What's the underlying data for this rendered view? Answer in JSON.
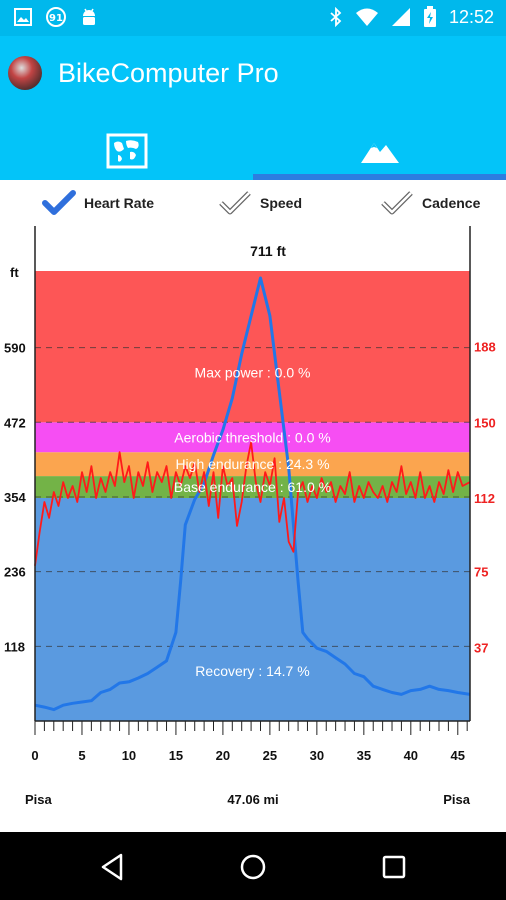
{
  "status_bar": {
    "time": "12:52",
    "notification_badge": "91",
    "icons": [
      "image-icon",
      "badge-91-icon",
      "android-icon",
      "bluetooth-icon",
      "wifi-icon",
      "signal-icon",
      "battery-icon"
    ]
  },
  "app_bar": {
    "title": "BikeComputer Pro",
    "tabs": [
      {
        "name": "map",
        "icon": "map-icon",
        "selected": false
      },
      {
        "name": "elevation",
        "icon": "mountain-icon",
        "selected": true
      }
    ],
    "colors": {
      "background": "#03c4f9",
      "indicator": "#2d7de0"
    }
  },
  "legend": [
    {
      "label": "Heart Rate",
      "checked": true
    },
    {
      "label": "Speed",
      "checked": false
    },
    {
      "label": "Cadence",
      "checked": false
    }
  ],
  "chart_data": {
    "type": "area",
    "peak_label": "711 ft",
    "left_axis_unit": "ft",
    "left_ticks": [
      "590",
      "472",
      "354",
      "236",
      "118"
    ],
    "right_ticks": [
      "188",
      "150",
      "112",
      "75",
      "37"
    ],
    "x_ticks": [
      "0",
      "5",
      "10",
      "15",
      "20",
      "25",
      "30",
      "35",
      "40",
      "45"
    ],
    "xlim": [
      0,
      46.3
    ],
    "elevation_ylim": [
      0,
      711
    ],
    "hr_ylim": [
      0,
      226
    ],
    "start_label": "Pisa",
    "distance_label": "47.06 mi",
    "end_label": "Pisa",
    "zones": [
      {
        "name": "Recovery",
        "label": "Recovery : 14.7 %",
        "from": 0,
        "to": 112,
        "color": "#5a9ae0"
      },
      {
        "name": "Base endurance",
        "label": "Base endurance : 61.0 %",
        "from": 112,
        "to": 123,
        "color": "#73b347"
      },
      {
        "name": "High endurance",
        "label": "High endurance : 24.3 %",
        "from": 123,
        "to": 135,
        "color": "#fba54f"
      },
      {
        "name": "Aerobic threshold",
        "label": "Aerobic threshold : 0.0 %",
        "from": 135,
        "to": 150,
        "color": "#f64ef3"
      },
      {
        "name": "Max power",
        "label": "Max power : 0.0 %",
        "from": 150,
        "to": 226,
        "color": "#fd5656"
      }
    ],
    "elevation_series": {
      "name": "Elevation",
      "color": "#2277e8",
      "points": [
        [
          0,
          25
        ],
        [
          1,
          22
        ],
        [
          2,
          18
        ],
        [
          3,
          25
        ],
        [
          4,
          28
        ],
        [
          5,
          30
        ],
        [
          6,
          32
        ],
        [
          7,
          45
        ],
        [
          8,
          50
        ],
        [
          9,
          60
        ],
        [
          10,
          62
        ],
        [
          11,
          68
        ],
        [
          12,
          75
        ],
        [
          13,
          85
        ],
        [
          14,
          95
        ],
        [
          15,
          140
        ],
        [
          15.5,
          220
        ],
        [
          16,
          310
        ],
        [
          17,
          350
        ],
        [
          18,
          375
        ],
        [
          19,
          420
        ],
        [
          20,
          460
        ],
        [
          21,
          510
        ],
        [
          22,
          580
        ],
        [
          23,
          640
        ],
        [
          24,
          700
        ],
        [
          25,
          640
        ],
        [
          26,
          520
        ],
        [
          27,
          400
        ],
        [
          28,
          220
        ],
        [
          28.5,
          140
        ],
        [
          29,
          130
        ],
        [
          30,
          115
        ],
        [
          31,
          110
        ],
        [
          32,
          100
        ],
        [
          33,
          90
        ],
        [
          34,
          75
        ],
        [
          35,
          70
        ],
        [
          36,
          55
        ],
        [
          37,
          50
        ],
        [
          38,
          45
        ],
        [
          39,
          42
        ],
        [
          40,
          48
        ],
        [
          41,
          50
        ],
        [
          42,
          55
        ],
        [
          43,
          50
        ],
        [
          44,
          48
        ],
        [
          45,
          45
        ],
        [
          46.3,
          42
        ]
      ]
    },
    "heart_rate_series": {
      "name": "Heart Rate",
      "color": "#ff1a1a",
      "points": [
        [
          0,
          78
        ],
        [
          0.5,
          95
        ],
        [
          1,
          110
        ],
        [
          1.5,
          102
        ],
        [
          2,
          115
        ],
        [
          2.5,
          108
        ],
        [
          3,
          120
        ],
        [
          3.5,
          112
        ],
        [
          4,
          118
        ],
        [
          4.5,
          110
        ],
        [
          5,
          125
        ],
        [
          5.5,
          115
        ],
        [
          6,
          128
        ],
        [
          6.5,
          112
        ],
        [
          7,
          122
        ],
        [
          7.5,
          115
        ],
        [
          8,
          125
        ],
        [
          8.5,
          118
        ],
        [
          9,
          135
        ],
        [
          9.5,
          120
        ],
        [
          10,
          128
        ],
        [
          10.5,
          112
        ],
        [
          11,
          125
        ],
        [
          11.5,
          118
        ],
        [
          12,
          130
        ],
        [
          12.5,
          115
        ],
        [
          13,
          125
        ],
        [
          13.5,
          120
        ],
        [
          14,
          128
        ],
        [
          14.5,
          112
        ],
        [
          15,
          125
        ],
        [
          15.5,
          118
        ],
        [
          16,
          128
        ],
        [
          16.5,
          122
        ],
        [
          17,
          130
        ],
        [
          17.5,
          115
        ],
        [
          18,
          125
        ],
        [
          18.5,
          108
        ],
        [
          19,
          125
        ],
        [
          19.5,
          102
        ],
        [
          20,
          128
        ],
        [
          20.5,
          118
        ],
        [
          21,
          122
        ],
        [
          21.5,
          98
        ],
        [
          22,
          110
        ],
        [
          22.5,
          128
        ],
        [
          23,
          140
        ],
        [
          23.5,
          120
        ],
        [
          24,
          110
        ],
        [
          24.5,
          125
        ],
        [
          25,
          118
        ],
        [
          25.5,
          132
        ],
        [
          26,
          100
        ],
        [
          26.5,
          112
        ],
        [
          27,
          90
        ],
        [
          27.5,
          85
        ],
        [
          28,
          115
        ],
        [
          28.5,
          120
        ],
        [
          29,
          110
        ],
        [
          29.5,
          118
        ],
        [
          30,
          112
        ],
        [
          30.5,
          122
        ],
        [
          31,
          115
        ],
        [
          31.5,
          120
        ],
        [
          32,
          110
        ],
        [
          32.5,
          118
        ],
        [
          33,
          114
        ],
        [
          33.5,
          125
        ],
        [
          34,
          110
        ],
        [
          34.5,
          118
        ],
        [
          35,
          112
        ],
        [
          35.5,
          120
        ],
        [
          36,
          115
        ],
        [
          36.5,
          112
        ],
        [
          37,
          118
        ],
        [
          37.5,
          110
        ],
        [
          38,
          120
        ],
        [
          38.5,
          115
        ],
        [
          39,
          128
        ],
        [
          39.5,
          114
        ],
        [
          40,
          120
        ],
        [
          40.5,
          112
        ],
        [
          41,
          125
        ],
        [
          41.5,
          112
        ],
        [
          42,
          118
        ],
        [
          42.5,
          110
        ],
        [
          43,
          120
        ],
        [
          43.5,
          114
        ],
        [
          44,
          126
        ],
        [
          44.5,
          115
        ],
        [
          45,
          125
        ],
        [
          45.5,
          118
        ],
        [
          46.3,
          120
        ]
      ]
    }
  }
}
